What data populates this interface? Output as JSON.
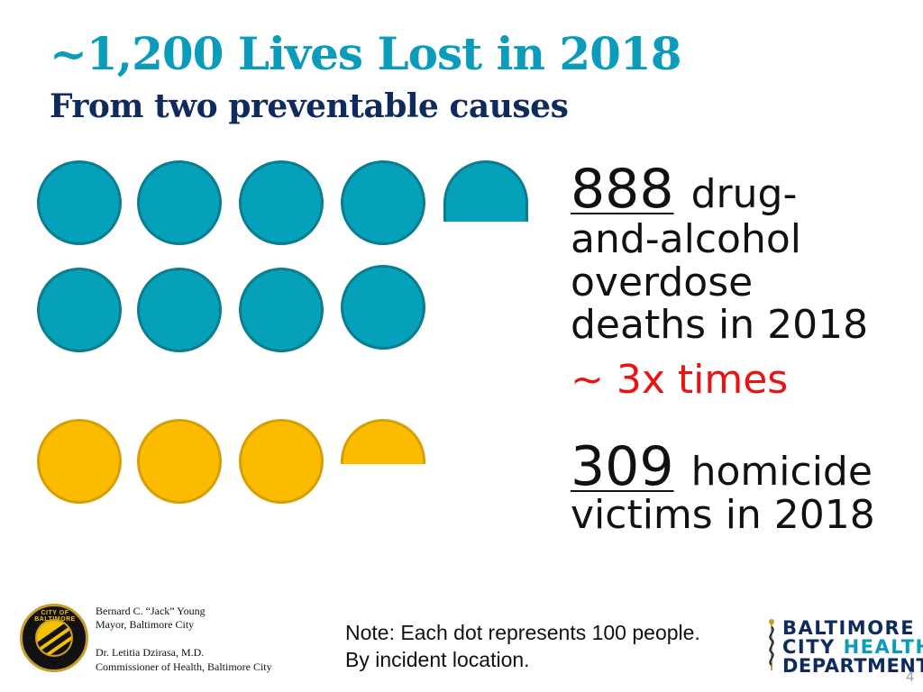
{
  "header": {
    "title": "~1,200 Lives Lost in 2018",
    "subtitle": "From two preventable causes"
  },
  "stats": {
    "overdose": {
      "number": "888",
      "text_line1": "drug-",
      "text_line2": "and-alcohol",
      "text_line3": "overdose",
      "text_line4": "deaths in 2018",
      "comparison": "~ 3x times"
    },
    "homicide": {
      "number": "309",
      "text_line1": "homicide",
      "text_line2": "victims in 2018"
    }
  },
  "footer": {
    "seal_text": "CITY OF BALTIMORE",
    "mayor_name": "Bernard C. “Jack” Young",
    "mayor_title": "Mayor, Baltimore City",
    "commissioner_name": "Dr. Letitia Dzirasa, M.D.",
    "commissioner_title": "Commissioner of Health, Baltimore City",
    "note_line1": "Note: Each dot represents 100 people.",
    "note_line2": "By incident location.",
    "logo_line1": "BALTIMORE",
    "logo_line2a": "CITY",
    "logo_line2b": "HEALTH",
    "logo_line3": "DEPARTMENT",
    "page_number": "4"
  },
  "colors": {
    "overdose_dot": "#05a0ba",
    "homicide_dot": "#fbbc00",
    "title": "#0a9cba",
    "subtitle": "#0f2a5c",
    "comparison": "#ee1111"
  },
  "dot_legend": {
    "overdose_full_dots": 8,
    "overdose_partial_dots": 1,
    "homicide_full_dots": 3,
    "homicide_partial_dots": 1
  }
}
